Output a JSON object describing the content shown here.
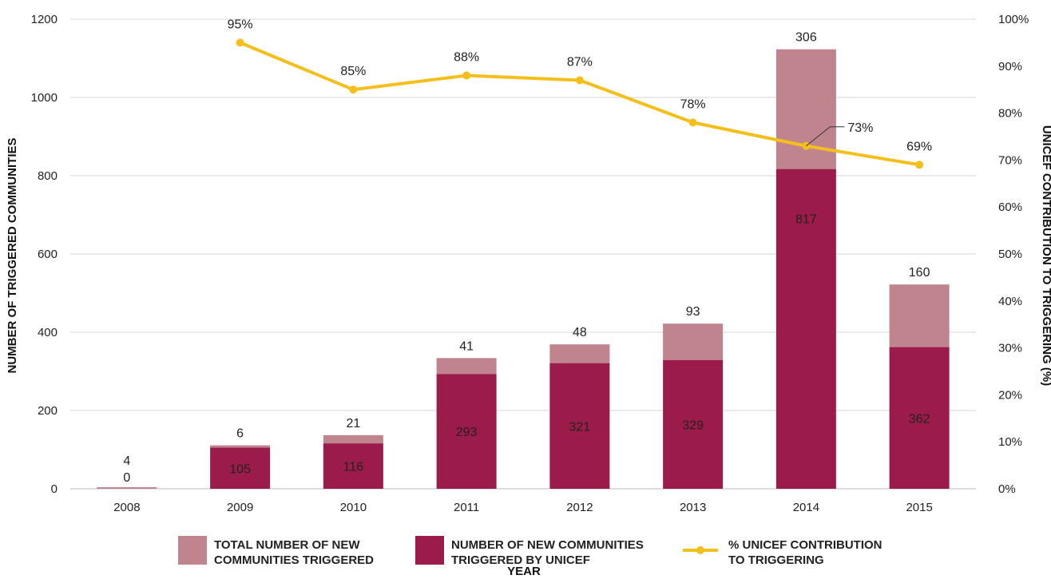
{
  "chart_data": {
    "type": "bar",
    "categories": [
      "2008",
      "2009",
      "2010",
      "2011",
      "2012",
      "2013",
      "2014",
      "2015"
    ],
    "series": [
      {
        "name": "NUMBER OF NEW COMMUNITIES TRIGGERED BY UNICEF",
        "values": [
          0,
          105,
          116,
          293,
          321,
          329,
          817,
          362
        ],
        "color": "#9b1b4b"
      },
      {
        "name": "TOTAL NUMBER OF NEW COMMUNITIES TRIGGERED",
        "stack_values": [
          4,
          6,
          21,
          41,
          48,
          93,
          306,
          160
        ],
        "color": "#c0848f"
      },
      {
        "name": "% UNICEF CONTRIBUTION TO TRIGGERING",
        "type": "line",
        "axis": "right",
        "values": [
          null,
          95,
          85,
          88,
          87,
          78,
          73,
          69
        ],
        "labels": [
          "",
          "95%",
          "85%",
          "88%",
          "87%",
          "78%",
          "73%",
          "69%"
        ],
        "color": "#f5bf1b"
      }
    ],
    "legend": {
      "placement": "bottom",
      "entries": [
        {
          "line1": "TOTAL NUMBER OF NEW",
          "line2": "COMMUNITIES TRIGGERED",
          "swatch": "bar",
          "color": "#c0848f"
        },
        {
          "line1": "NUMBER OF NEW COMMUNITIES",
          "line2": "TRIGGERED BY UNICEF",
          "swatch": "bar",
          "color": "#9b1b4b"
        },
        {
          "line1": "% UNICEF CONTRIBUTION",
          "line2": "TO TRIGGERING",
          "swatch": "line",
          "color": "#f5bf1b"
        }
      ]
    },
    "xlabel": "YEAR",
    "ylabel": "NUMBER OF TRIGGERED  COMMUNITIES",
    "y2label": "UNICEF CONTRIBUTION TO TRIGGERING (%)",
    "ylim": [
      0,
      1200
    ],
    "y2lim": [
      0,
      100
    ],
    "yticks": [
      0,
      200,
      400,
      600,
      800,
      1000,
      1200
    ],
    "y2ticks": [
      "0%",
      "10%",
      "20%",
      "30%",
      "40%",
      "50%",
      "60%",
      "70%",
      "80%",
      "90%",
      "100%"
    ],
    "grid": true
  }
}
